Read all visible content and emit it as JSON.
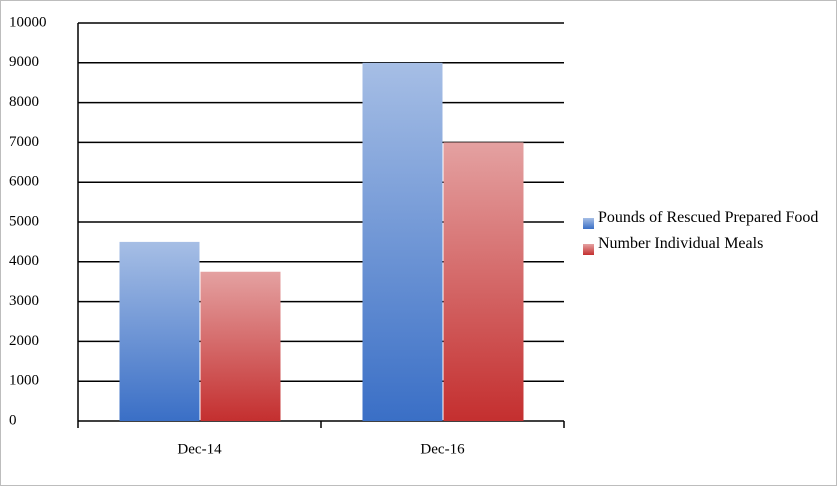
{
  "chart_data": {
    "type": "bar",
    "categories": [
      "Dec-14",
      "Dec-16"
    ],
    "series": [
      {
        "name": "Pounds of Rescued Prepared Food",
        "color": "#3a6fc6",
        "values": [
          4500,
          9000
        ]
      },
      {
        "name": "Number Individual Meals",
        "color": "#c42f2f",
        "values": [
          3750,
          7000
        ]
      }
    ],
    "ylim": [
      0,
      10000
    ],
    "yticks": [
      0,
      1000,
      2000,
      3000,
      4000,
      5000,
      6000,
      7000,
      8000,
      9000,
      10000
    ],
    "grid": true,
    "legend": "right"
  }
}
